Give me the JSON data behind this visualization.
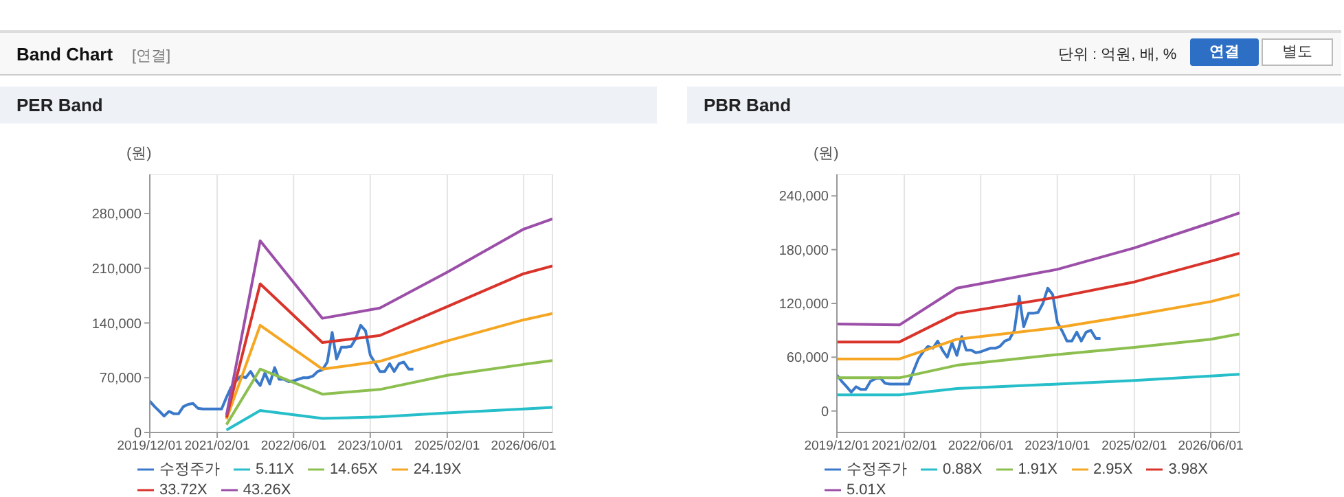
{
  "chart_data": [
    {
      "type": "line",
      "title": "PER Band",
      "ylabel": "(원)",
      "annotations": [
        "Band Chart",
        "[연결]",
        "단위 : 억원, 배, %",
        "연결",
        "별도"
      ],
      "xlim": [
        "2019-12-01",
        "2026-12-01"
      ],
      "xticks": [
        {
          "value": "2019-12-01",
          "label": "2019/12/01"
        },
        {
          "value": "2021-02-01",
          "label": "2021/02/01"
        },
        {
          "value": "2022-06-01",
          "label": "2022/06/01"
        },
        {
          "value": "2023-10-01",
          "label": "2023/10/01"
        },
        {
          "value": "2025-02-01",
          "label": "2025/02/01"
        },
        {
          "value": "2026-06-01",
          "label": "2026/06/01"
        }
      ],
      "ylim": [
        0,
        330000
      ],
      "yticks": [
        0,
        {
          "value": 70000,
          "label": "70,000"
        },
        {
          "value": 140000,
          "label": "140,000"
        },
        {
          "value": 210000,
          "label": "210,000"
        },
        {
          "value": 280000,
          "label": "280,000"
        }
      ],
      "grid": true,
      "legend": "bottom",
      "series": [
        {
          "name": "수정주가",
          "color": "#3a78c9",
          "x": [
            "2019-12",
            "2020-01",
            "2020-02",
            "2020-03",
            "2020-04",
            "2020-05",
            "2020-06",
            "2020-07",
            "2020-08",
            "2020-09",
            "2020-10",
            "2020-11",
            "2020-12",
            "2021-01",
            "2021-02",
            "2021-03",
            "2021-04",
            "2021-05",
            "2021-06",
            "2021-07",
            "2021-08",
            "2021-09",
            "2021-10",
            "2021-11",
            "2021-12",
            "2022-01",
            "2022-02",
            "2022-03",
            "2022-04",
            "2022-05",
            "2022-06",
            "2022-07",
            "2022-08",
            "2022-09",
            "2022-10",
            "2022-11",
            "2022-12",
            "2023-01",
            "2023-02",
            "2023-03",
            "2023-04",
            "2023-05",
            "2023-06",
            "2023-07",
            "2023-08",
            "2023-09",
            "2023-10",
            "2023-11",
            "2023-12",
            "2024-01",
            "2024-02",
            "2024-03",
            "2024-04",
            "2024-05",
            "2024-06",
            "2024-07"
          ],
          "values": [
            40000,
            33000,
            27000,
            21000,
            27000,
            24000,
            24000,
            33000,
            36000,
            37000,
            31000,
            30000,
            30000,
            30000,
            30000,
            30000,
            45000,
            58000,
            66000,
            72000,
            70000,
            78000,
            68000,
            60000,
            76000,
            62000,
            83000,
            68000,
            68000,
            65000,
            66000,
            68000,
            70000,
            70000,
            72000,
            78000,
            80000,
            90000,
            128000,
            94000,
            109000,
            109000,
            110000,
            120000,
            137000,
            130000,
            99000,
            89000,
            78000,
            78000,
            88000,
            78000,
            88000,
            90000,
            81000,
            81000
          ]
        },
        {
          "name": "5.11X",
          "color": "#26bec9",
          "x": [
            "2021-04",
            "2021-11",
            "2022-12",
            "2023-12",
            "2025-02",
            "2026-06",
            "2026-12"
          ],
          "values": [
            3000,
            28000,
            18000,
            20000,
            25000,
            30000,
            32000
          ]
        },
        {
          "name": "14.65X",
          "color": "#8cbf4f",
          "x": [
            "2021-04",
            "2021-11",
            "2022-12",
            "2023-12",
            "2025-02",
            "2026-06",
            "2026-12"
          ],
          "values": [
            10000,
            81000,
            49000,
            55000,
            73000,
            87000,
            92000
          ]
        },
        {
          "name": "24.19X",
          "color": "#f5a623",
          "x": [
            "2021-04",
            "2021-11",
            "2022-12",
            "2023-12",
            "2025-02",
            "2026-06",
            "2026-12"
          ],
          "values": [
            17000,
            137000,
            81000,
            91000,
            117000,
            144000,
            152000
          ]
        },
        {
          "name": "33.72X",
          "color": "#d9342b",
          "x": [
            "2021-04",
            "2021-11",
            "2022-12",
            "2023-12",
            "2025-02",
            "2026-06",
            "2026-12"
          ],
          "values": [
            19000,
            190000,
            115000,
            124000,
            161000,
            203000,
            213000
          ]
        },
        {
          "name": "43.26X",
          "color": "#9b4fa8",
          "x": [
            "2021-04",
            "2021-11",
            "2022-12",
            "2023-12",
            "2025-02",
            "2026-06",
            "2026-12"
          ],
          "values": [
            22000,
            245000,
            146000,
            159000,
            205000,
            260000,
            273000
          ]
        }
      ]
    },
    {
      "type": "line",
      "title": "PBR Band",
      "ylabel": "(원)",
      "xlim": [
        "2019-12-01",
        "2026-12-01"
      ],
      "xticks": [
        {
          "value": "2019-12-01",
          "label": "2019/12/01"
        },
        {
          "value": "2021-02-01",
          "label": "2021/02/01"
        },
        {
          "value": "2022-06-01",
          "label": "2022/06/01"
        },
        {
          "value": "2023-10-01",
          "label": "2023/10/01"
        },
        {
          "value": "2025-02-01",
          "label": "2025/02/01"
        },
        {
          "value": "2026-06-01",
          "label": "2026/06/01"
        }
      ],
      "ylim": [
        -24000,
        264000
      ],
      "yticks": [
        0,
        {
          "value": 60000,
          "label": "60,000"
        },
        {
          "value": 120000,
          "label": "120,000"
        },
        {
          "value": 180000,
          "label": "180,000"
        },
        {
          "value": 240000,
          "label": "240,000"
        }
      ],
      "grid": true,
      "legend": "bottom",
      "series": [
        {
          "name": "수정주가",
          "color": "#3a78c9",
          "x": [
            "2019-12",
            "2020-01",
            "2020-02",
            "2020-03",
            "2020-04",
            "2020-05",
            "2020-06",
            "2020-07",
            "2020-08",
            "2020-09",
            "2020-10",
            "2020-11",
            "2020-12",
            "2021-01",
            "2021-02",
            "2021-03",
            "2021-04",
            "2021-05",
            "2021-06",
            "2021-07",
            "2021-08",
            "2021-09",
            "2021-10",
            "2021-11",
            "2021-12",
            "2022-01",
            "2022-02",
            "2022-03",
            "2022-04",
            "2022-05",
            "2022-06",
            "2022-07",
            "2022-08",
            "2022-09",
            "2022-10",
            "2022-11",
            "2022-12",
            "2023-01",
            "2023-02",
            "2023-03",
            "2023-04",
            "2023-05",
            "2023-06",
            "2023-07",
            "2023-08",
            "2023-09",
            "2023-10",
            "2023-11",
            "2023-12",
            "2024-01",
            "2024-02",
            "2024-03",
            "2024-04",
            "2024-05",
            "2024-06",
            "2024-07"
          ],
          "values": [
            40000,
            33000,
            27000,
            21000,
            27000,
            24000,
            24000,
            33000,
            36000,
            37000,
            31000,
            30000,
            30000,
            30000,
            30000,
            30000,
            45000,
            58000,
            66000,
            72000,
            70000,
            78000,
            68000,
            60000,
            76000,
            62000,
            83000,
            68000,
            68000,
            65000,
            66000,
            68000,
            70000,
            70000,
            72000,
            78000,
            80000,
            90000,
            128000,
            94000,
            109000,
            109000,
            110000,
            120000,
            137000,
            130000,
            99000,
            89000,
            78000,
            78000,
            88000,
            78000,
            88000,
            90000,
            81000,
            81000
          ]
        },
        {
          "name": "0.88X",
          "color": "#26bec9",
          "x": [
            "2019-12",
            "2021-01",
            "2022-01",
            "2023-10",
            "2025-02",
            "2026-06",
            "2026-12"
          ],
          "values": [
            18000,
            18000,
            25000,
            30000,
            34000,
            39000,
            41000
          ]
        },
        {
          "name": "1.91X",
          "color": "#8cbf4f",
          "x": [
            "2019-12",
            "2021-01",
            "2022-01",
            "2023-10",
            "2025-02",
            "2026-06",
            "2026-12"
          ],
          "values": [
            37000,
            37000,
            51000,
            63000,
            71000,
            80000,
            86000
          ]
        },
        {
          "name": "2.95X",
          "color": "#f5a623",
          "x": [
            "2019-12",
            "2021-01",
            "2022-01",
            "2023-10",
            "2025-02",
            "2026-06",
            "2026-12"
          ],
          "values": [
            58000,
            58000,
            80000,
            93000,
            107000,
            122000,
            130000
          ]
        },
        {
          "name": "3.98X",
          "color": "#d9342b",
          "x": [
            "2019-12",
            "2021-01",
            "2022-01",
            "2023-10",
            "2025-02",
            "2026-06",
            "2026-12"
          ],
          "values": [
            77000,
            77000,
            109000,
            127000,
            144000,
            167000,
            176000
          ]
        },
        {
          "name": "5.01X",
          "color": "#9b4fa8",
          "x": [
            "2019-12",
            "2021-01",
            "2022-01",
            "2023-10",
            "2025-02",
            "2026-06",
            "2026-12"
          ],
          "values": [
            97000,
            96000,
            137000,
            158000,
            182000,
            210000,
            221000
          ]
        }
      ]
    }
  ]
}
